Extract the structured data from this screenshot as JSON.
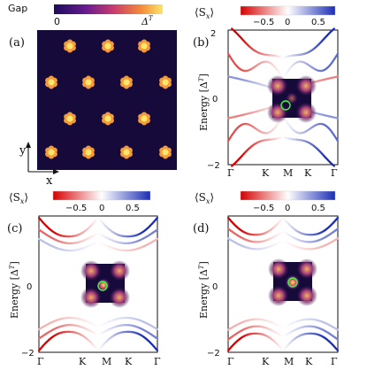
{
  "figure": {
    "panel_labels": [
      "(a)",
      "(b)",
      "(c)",
      "(d)"
    ],
    "panel_a": {
      "colorbar_title": "Gap",
      "colorbar_min": "0",
      "colorbar_max": "Δ",
      "colorbar_max_sup": "T",
      "axis_y": "y",
      "axis_x": "x",
      "colormap": [
        "#1c0b5e",
        "#6a1c8f",
        "#c83c6d",
        "#f48a3a",
        "#fbe66a"
      ]
    },
    "spin_colorbar": {
      "title": "⟨S",
      "title_sub": "x",
      "title_close": "⟩",
      "ticks": [
        "−0.5",
        "0",
        "0.5"
      ],
      "colors": [
        "#d70000",
        "#ffffff",
        "#1b2db5"
      ]
    },
    "energy_axis": {
      "label": "Energy [Δ",
      "label_sup": "T",
      "label_close": "]",
      "ticks": [
        "2",
        "0",
        "−2"
      ]
    },
    "k_axis_b": [
      "Γ",
      "K",
      "M",
      "K",
      "Γ"
    ],
    "k_axis_c": [
      "Γ",
      "K",
      "M",
      "K",
      "Γ"
    ],
    "k_axis_d": [
      "Γ",
      "K",
      "M",
      "K",
      "Γ"
    ],
    "inset_marker_color": "#3cff3c"
  },
  "chart_data": [
    {
      "type": "heatmap",
      "panel": "(a)",
      "description_source": "colorbar Gap 0 to Δ^T",
      "pattern": "triangular lattice of 6-petal gap spots, 4 rows x 4 columns alternating offset"
    },
    {
      "type": "line",
      "panel": "(b)",
      "x_ticks": [
        "Γ",
        "K",
        "M",
        "K",
        "Γ"
      ],
      "ylabel": "Energy [Δ^T]",
      "ylim": [
        -2,
        2
      ],
      "y_ticks": [
        2,
        0,
        -2
      ],
      "color_variable": "⟨S_x⟩",
      "color_range": [
        -1,
        1
      ],
      "inset_marker": "off-center"
    },
    {
      "type": "line",
      "panel": "(c)",
      "x_ticks": [
        "Γ",
        "K",
        "M",
        "K",
        "Γ"
      ],
      "ylabel": "Energy [Δ^T]",
      "ylim": [
        -2,
        2
      ],
      "y_ticks": [
        2,
        0,
        -2
      ],
      "color_variable": "⟨S_x⟩",
      "color_range": [
        -1,
        1
      ],
      "inset_marker": "near-center"
    },
    {
      "type": "line",
      "panel": "(d)",
      "x_ticks": [
        "Γ",
        "K",
        "M",
        "K",
        "Γ"
      ],
      "ylabel": "Energy [Δ^T]",
      "ylim": [
        -2,
        2
      ],
      "y_ticks": [
        2,
        0,
        -2
      ],
      "color_variable": "⟨S_x⟩",
      "color_range": [
        -1,
        1
      ],
      "inset_marker": "center"
    }
  ]
}
